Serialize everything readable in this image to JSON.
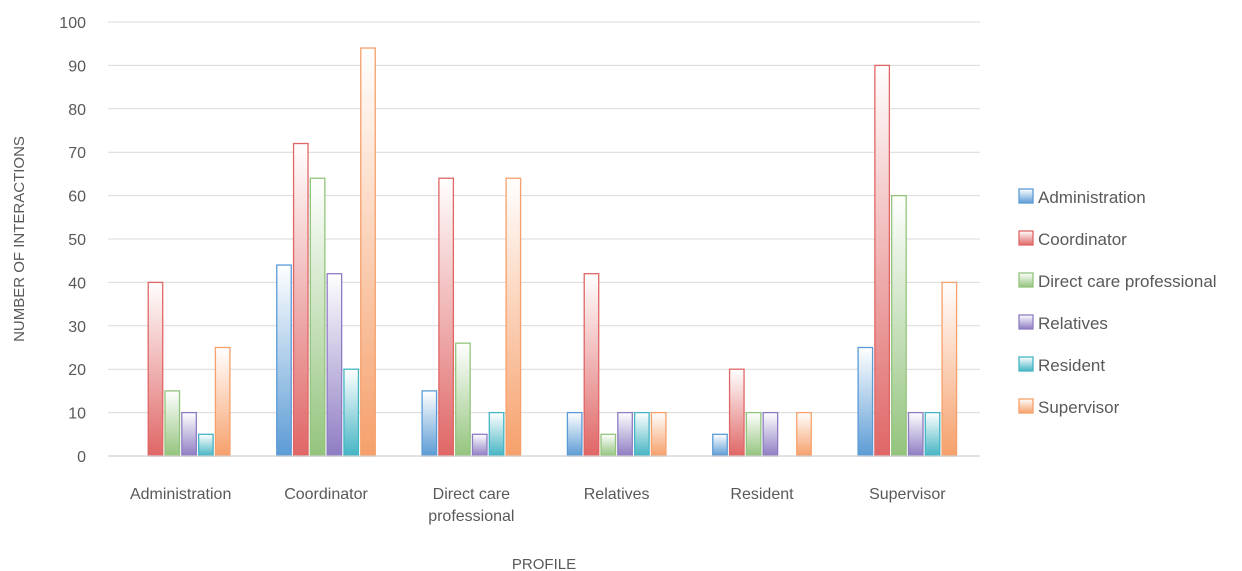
{
  "chart_data": {
    "type": "bar",
    "title": "",
    "xlabel": "PROFILE",
    "ylabel": "NUMBER OF INTERACTIONS",
    "ylim": [
      0,
      100
    ],
    "yticks": [
      0,
      10,
      20,
      30,
      40,
      50,
      60,
      70,
      80,
      90,
      100
    ],
    "grid": true,
    "legend_position": "right",
    "categories": [
      "Administration",
      "Coordinator",
      "Direct care professional",
      "Relatives",
      "Resident",
      "Supervisor"
    ],
    "category_lines": [
      [
        "Administration"
      ],
      [
        "Coordinator"
      ],
      [
        "Direct care",
        "professional"
      ],
      [
        "Relatives"
      ],
      [
        "Resident"
      ],
      [
        "Supervisor"
      ]
    ],
    "series": [
      {
        "name": "Administration",
        "color": "#5b9bd5",
        "values": [
          0,
          44,
          15,
          10,
          5,
          25
        ]
      },
      {
        "name": "Coordinator",
        "color": "#e06666",
        "values": [
          40,
          72,
          64,
          42,
          20,
          90
        ]
      },
      {
        "name": "Direct care professional",
        "color": "#93c47d",
        "values": [
          15,
          64,
          26,
          5,
          10,
          60
        ]
      },
      {
        "name": "Relatives",
        "color": "#8e7cc3",
        "values": [
          10,
          42,
          5,
          10,
          10,
          10
        ]
      },
      {
        "name": "Resident",
        "color": "#45b5c4",
        "values": [
          5,
          20,
          10,
          10,
          0,
          10
        ]
      },
      {
        "name": "Supervisor",
        "color": "#f6a06b",
        "values": [
          25,
          94,
          64,
          10,
          10,
          40
        ]
      }
    ]
  }
}
